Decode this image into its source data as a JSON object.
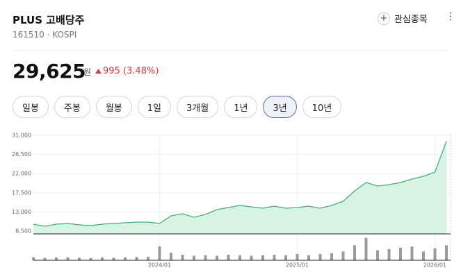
{
  "header": {
    "title": "PLUS 고배당주",
    "code": "161510 · KOSPI",
    "watch": "관심종목"
  },
  "price": {
    "value": "29,625",
    "unit": "원",
    "change": "995 (3.48%)"
  },
  "tabs": [
    "일봉",
    "주봉",
    "월봉",
    "1일",
    "3개월",
    "1년",
    "3년",
    "10년"
  ],
  "selected_tab": 6,
  "chart_data": {
    "type": "line",
    "x": [
      "2023/02",
      "2023/03",
      "2023/04",
      "2023/05",
      "2023/06",
      "2023/07",
      "2023/08",
      "2023/09",
      "2023/10",
      "2023/11",
      "2023/12",
      "2024/01",
      "2024/02",
      "2024/03",
      "2024/04",
      "2024/05",
      "2024/06",
      "2024/07",
      "2024/08",
      "2024/09",
      "2024/10",
      "2024/11",
      "2024/12",
      "2025/01",
      "2025/02",
      "2025/03",
      "2025/04",
      "2025/05",
      "2025/06",
      "2025/07",
      "2025/08",
      "2025/09",
      "2025/10",
      "2025/11",
      "2025/12",
      "2026/01",
      "2026/02"
    ],
    "values": [
      10130,
      9640,
      10130,
      10290,
      9970,
      9800,
      10130,
      10290,
      10460,
      10620,
      10620,
      10290,
      12090,
      12580,
      11760,
      12410,
      13550,
      14040,
      14530,
      14210,
      13880,
      14370,
      13880,
      14040,
      14370,
      13880,
      14530,
      15510,
      17950,
      19910,
      19100,
      19420,
      19910,
      20730,
      21380,
      22360,
      29625
    ],
    "color": "#3cb371",
    "fill": "#d9f3e3",
    "ylim": [
      7850,
      31330
    ],
    "yticks": [
      {
        "value": 8500,
        "label": "8,500"
      },
      {
        "value": 13000,
        "label": "13,000"
      },
      {
        "value": 17500,
        "label": "17,500"
      },
      {
        "value": 22000,
        "label": "22,000"
      },
      {
        "value": 26500,
        "label": "26,500"
      },
      {
        "value": 31000,
        "label": "31,000"
      }
    ],
    "xticks": [
      "2024/01",
      "2025/01",
      "2026/01"
    ],
    "grid": true,
    "volume": {
      "values": [
        12,
        10,
        11,
        12,
        10,
        9,
        11,
        10,
        12,
        13,
        14,
        55,
        30,
        22,
        18,
        20,
        18,
        22,
        20,
        18,
        20,
        22,
        20,
        25,
        20,
        25,
        28,
        35,
        60,
        90,
        40,
        45,
        50,
        55,
        35,
        48,
        60
      ],
      "ylim": [
        0,
        100
      ],
      "color": "#9a9a9a"
    }
  }
}
